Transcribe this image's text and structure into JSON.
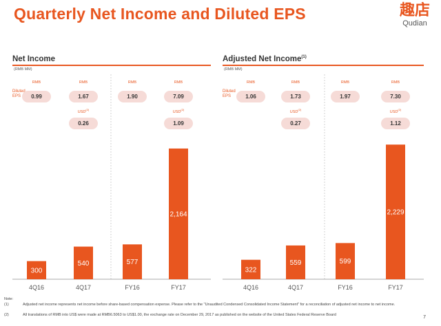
{
  "title": "Quarterly Net Income and Diluted EPS",
  "logo": {
    "cn": "趣店",
    "en": "Qudian"
  },
  "colors": {
    "accent": "#e8561f",
    "pill": "#f6dbd7",
    "axis": "#aaaaaa"
  },
  "panels": [
    {
      "title": "Net Income",
      "title_sup": "",
      "unit": "(RMB MM)",
      "eps_label_1": "Diluted",
      "eps_label_2": "EPS",
      "eps": [
        {
          "cur": "RMB",
          "val": "0.99",
          "usd_cur": "",
          "usd": ""
        },
        {
          "cur": "RMB",
          "val": "1.67",
          "usd_cur": "USD",
          "usd": "0.26"
        },
        {
          "cur": "RMB",
          "val": "1.90",
          "usd_cur": "",
          "usd": ""
        },
        {
          "cur": "RMB",
          "val": "7.09",
          "usd_cur": "USD",
          "usd": "1.09"
        }
      ]
    },
    {
      "title": "Adjusted Net Income",
      "title_sup": "(1)",
      "unit": "(RMB MM)",
      "eps_label_1": "Diluted",
      "eps_label_2": "EPS",
      "eps": [
        {
          "cur": "RMB",
          "val": "1.06",
          "usd_cur": "",
          "usd": ""
        },
        {
          "cur": "RMB",
          "val": "1.73",
          "usd_cur": "USD",
          "usd": "0.27"
        },
        {
          "cur": "RMB",
          "val": "1.97",
          "usd_cur": "",
          "usd": ""
        },
        {
          "cur": "RMB",
          "val": "7.30",
          "usd_cur": "USD",
          "usd": "1.12"
        }
      ]
    }
  ],
  "usd_sup": "(2)",
  "chart_data": [
    {
      "type": "bar",
      "title": "Net Income",
      "ylabel": "(RMB MM)",
      "categories": [
        "4Q16",
        "4Q17",
        "FY16",
        "FY17"
      ],
      "values": [
        300,
        540,
        577,
        2164
      ],
      "value_labels": [
        "300",
        "540",
        "577",
        "2,164"
      ]
    },
    {
      "type": "bar",
      "title": "Adjusted Net Income",
      "ylabel": "(RMB MM)",
      "categories": [
        "4Q16",
        "4Q17",
        "FY16",
        "FY17"
      ],
      "values": [
        322,
        559,
        599,
        2229
      ],
      "value_labels": [
        "322",
        "559",
        "599",
        "2,229"
      ]
    }
  ],
  "notes": {
    "heading": "Note:",
    "items": [
      {
        "num": "(1)",
        "text": "Adjusted net income represents net income before share-based compensation expense. Please refer to the \"Unaudited Condensed Consolidated Income Statement\" for a reconciliation of adjusted net income to net income."
      },
      {
        "num": "(2)",
        "text": "All translations of RMB into US$ were made at RMB6.5063 to US$1.00, the exchange rate on December 29, 2017 as published on the website of the United States Federal Reserve Board"
      }
    ]
  },
  "page_number": "7"
}
